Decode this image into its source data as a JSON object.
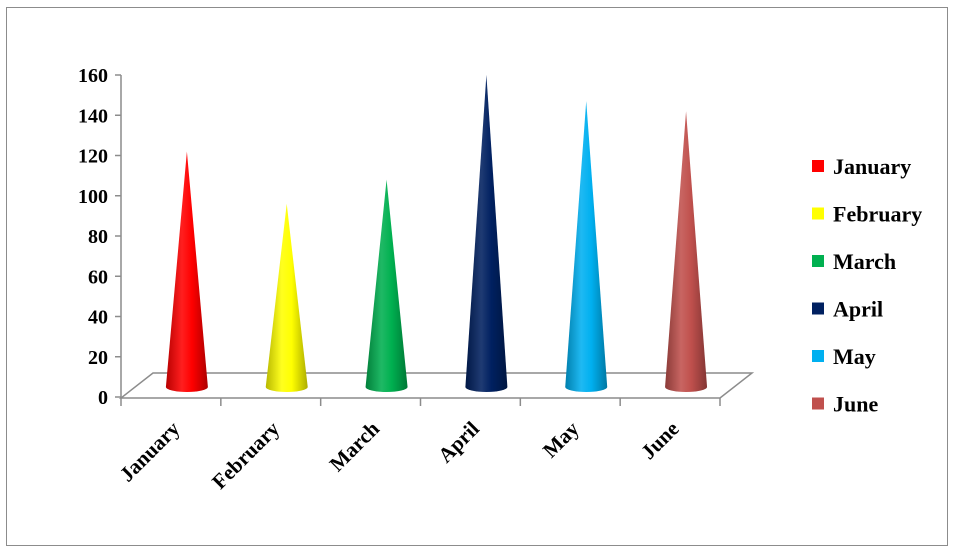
{
  "chart_data": {
    "type": "bar",
    "shape": "cone",
    "categories": [
      "January",
      "February",
      "March",
      "April",
      "May",
      "June"
    ],
    "values": [
      122,
      96,
      108,
      160,
      147,
      142
    ],
    "colors": [
      "#ff0000",
      "#ffff00",
      "#00b050",
      "#002060",
      "#00b0f0",
      "#c0504d"
    ],
    "ylim": [
      0,
      160
    ],
    "yticks": [
      "0",
      "20",
      "40",
      "60",
      "80",
      "100",
      "120",
      "140",
      "160"
    ],
    "legend": {
      "position": "right",
      "entries": [
        "January",
        "February",
        "March",
        "April",
        "May",
        "June"
      ]
    },
    "title": "",
    "xlabel": "",
    "ylabel": "",
    "grid": false
  }
}
